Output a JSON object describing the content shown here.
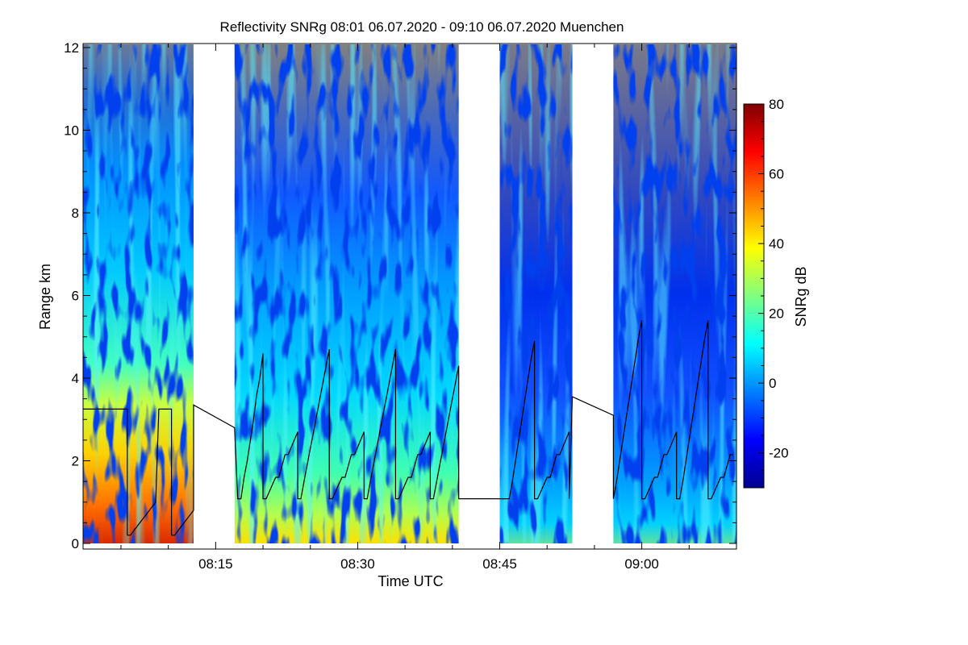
{
  "chart_data": {
    "type": "heatmap",
    "title": "Reflectivity SNRg   08:01 06.07.2020 - 09:10 06.07.2020 Muenchen",
    "xlabel": "Time UTC",
    "ylabel": "Range km",
    "x_unit": "minutes UTC",
    "xlim": [
      "08:01",
      "09:10"
    ],
    "ylim": [
      0,
      12
    ],
    "x_ticks": [
      "08:15",
      "08:30",
      "08:45",
      "09:00"
    ],
    "y_ticks": [
      "0",
      "2",
      "4",
      "6",
      "8",
      "10",
      "12"
    ],
    "colorbar": {
      "label": "SNRg dB",
      "range": [
        -30,
        80
      ],
      "ticks": [
        "-20",
        "0",
        "20",
        "40",
        "60",
        "80"
      ],
      "colormap": "jet"
    },
    "colors": {
      "no_signal": "#808080",
      "no_data": "#ffffff",
      "overlay_line": "#000000"
    },
    "data_segments": [
      {
        "start": "08:01:00",
        "end": "08:12:40",
        "regime": "high"
      },
      {
        "start": "08:17:00",
        "end": "08:40:40",
        "regime": "medium"
      },
      {
        "start": "08:45:00",
        "end": "08:52:40",
        "regime": "low"
      },
      {
        "start": "08:57:00",
        "end": "09:10:00",
        "regime": "low"
      }
    ],
    "series": [
      {
        "x": [
          "08:01:00",
          "08:05:40",
          "08:05:40",
          "08:06:00",
          "08:06:20",
          "08:06:40",
          "08:07:00",
          "08:07:20",
          "08:07:40",
          "08:08:00",
          "08:08:20",
          "08:08:40",
          "08:09:00",
          "08:10:20",
          "08:10:20",
          "08:10:40",
          "08:11:00",
          "08:11:20",
          "08:11:40",
          "08:12:00",
          "08:12:20",
          "08:12:40",
          "08:12:40",
          "08:17:00",
          "08:17:20",
          "08:17:40",
          "08:18:00",
          "08:18:20",
          "08:18:40",
          "08:19:00",
          "08:19:20",
          "08:19:40",
          "08:20:00",
          "08:20:00",
          "08:20:20",
          "08:21:20",
          "08:21:40",
          "08:22:20",
          "08:22:40",
          "08:23:40",
          "08:23:40",
          "08:24:00",
          "08:24:20",
          "08:24:40",
          "08:25:00",
          "08:25:20",
          "08:25:40",
          "08:26:00",
          "08:26:20",
          "08:26:40",
          "08:27:00",
          "08:27:00",
          "08:27:20",
          "08:28:20",
          "08:28:40",
          "08:29:20",
          "08:29:40",
          "08:30:40",
          "08:30:40",
          "08:31:00",
          "08:31:20",
          "08:31:40",
          "08:32:00",
          "08:32:20",
          "08:32:40",
          "08:33:00",
          "08:33:20",
          "08:33:40",
          "08:34:00",
          "08:34:00",
          "08:34:20",
          "08:35:20",
          "08:35:40",
          "08:36:20",
          "08:36:40",
          "08:37:40",
          "08:37:40",
          "08:38:00",
          "08:38:20",
          "08:38:40",
          "08:39:00",
          "08:39:20",
          "08:39:40",
          "08:40:00",
          "08:40:20",
          "08:40:40",
          "08:40:40",
          "08:46:00",
          "08:46:00",
          "08:46:20",
          "08:46:40",
          "08:47:00",
          "08:47:20",
          "08:47:40",
          "08:48:00",
          "08:48:20",
          "08:48:40",
          "08:48:40",
          "08:49:00",
          "08:50:00",
          "08:50:20",
          "08:51:00",
          "08:51:20",
          "08:52:20",
          "08:52:20",
          "08:52:40",
          "08:57:00",
          "08:57:00",
          "08:57:20",
          "08:57:40",
          "08:58:00",
          "08:58:20",
          "08:58:40",
          "08:59:00",
          "08:59:20",
          "08:59:40",
          "09:00:00",
          "09:00:00",
          "09:00:20",
          "09:01:20",
          "09:01:40",
          "09:02:20",
          "09:02:40",
          "09:03:40",
          "09:03:40",
          "09:04:00",
          "09:04:20",
          "09:04:40",
          "09:05:00",
          "09:05:20",
          "09:05:40",
          "09:06:00",
          "09:06:20",
          "09:06:40",
          "09:07:00",
          "09:07:00",
          "09:07:20",
          "09:08:20",
          "09:08:40",
          "09:09:20",
          "09:09:40"
        ],
        "y": [
          3.25,
          3.25,
          0.2,
          0.2,
          0.3,
          0.4,
          0.5,
          0.6,
          0.7,
          0.8,
          0.9,
          1.0,
          3.25,
          3.25,
          0.2,
          0.2,
          0.3,
          0.4,
          0.5,
          0.6,
          0.7,
          0.8,
          3.35,
          2.8,
          1.08,
          1.08,
          1.6,
          2.0,
          2.5,
          3.0,
          3.6,
          4.0,
          4.6,
          1.08,
          1.08,
          1.6,
          1.6,
          2.15,
          2.15,
          2.7,
          1.08,
          1.08,
          1.5,
          1.9,
          2.3,
          2.7,
          3.1,
          3.5,
          3.9,
          4.3,
          4.7,
          1.08,
          1.08,
          1.6,
          1.6,
          2.15,
          2.15,
          2.7,
          1.08,
          1.08,
          1.5,
          1.9,
          2.3,
          2.7,
          3.1,
          3.5,
          3.9,
          4.3,
          4.7,
          1.08,
          1.08,
          1.6,
          1.6,
          2.15,
          2.15,
          2.7,
          1.08,
          1.08,
          1.5,
          1.9,
          2.3,
          2.7,
          3.1,
          3.5,
          3.9,
          4.3,
          1.08,
          1.08,
          1.08,
          1.5,
          2.0,
          2.5,
          3.0,
          3.5,
          4.0,
          4.5,
          4.9,
          1.08,
          1.08,
          1.6,
          1.6,
          2.15,
          2.15,
          2.7,
          1.08,
          3.55,
          3.1,
          1.08,
          1.5,
          2.0,
          2.5,
          3.0,
          3.5,
          4.0,
          4.5,
          5.0,
          5.4,
          1.08,
          1.08,
          1.6,
          1.6,
          2.15,
          2.15,
          2.7,
          1.08,
          1.08,
          1.5,
          2.0,
          2.5,
          3.0,
          3.5,
          4.0,
          4.5,
          5.0,
          5.4,
          1.08,
          1.08,
          1.6,
          1.6,
          2.15,
          2.15
        ]
      }
    ]
  }
}
